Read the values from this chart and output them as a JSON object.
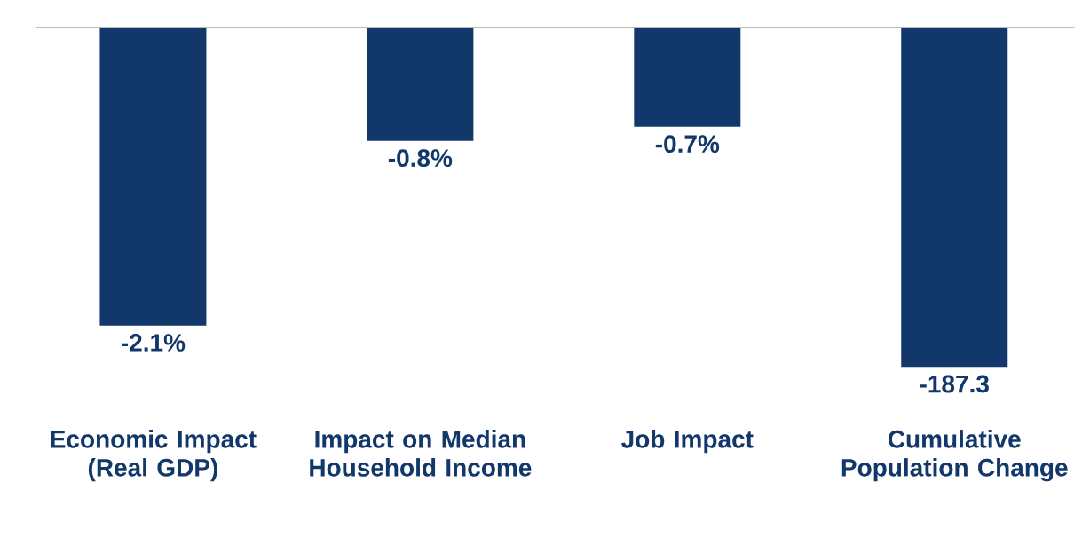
{
  "chart_data": {
    "type": "bar",
    "categories": [
      "Economic Impact (Real GDP)",
      "Impact on Median Household Income",
      "Job Impact",
      "Cumulative Population Change"
    ],
    "series": [
      {
        "color": "#12386b",
        "values": [
          -2.1,
          -0.8,
          -0.7,
          null
        ],
        "value_labels": [
          "-2.1%",
          "-0.8%",
          "-0.7%",
          null
        ]
      },
      {
        "color": "#12386b",
        "axis": "y2",
        "values": [
          null,
          null,
          null,
          -187.3
        ],
        "value_labels": [
          null,
          null,
          null,
          "-187.3"
        ]
      }
    ]
  }
}
